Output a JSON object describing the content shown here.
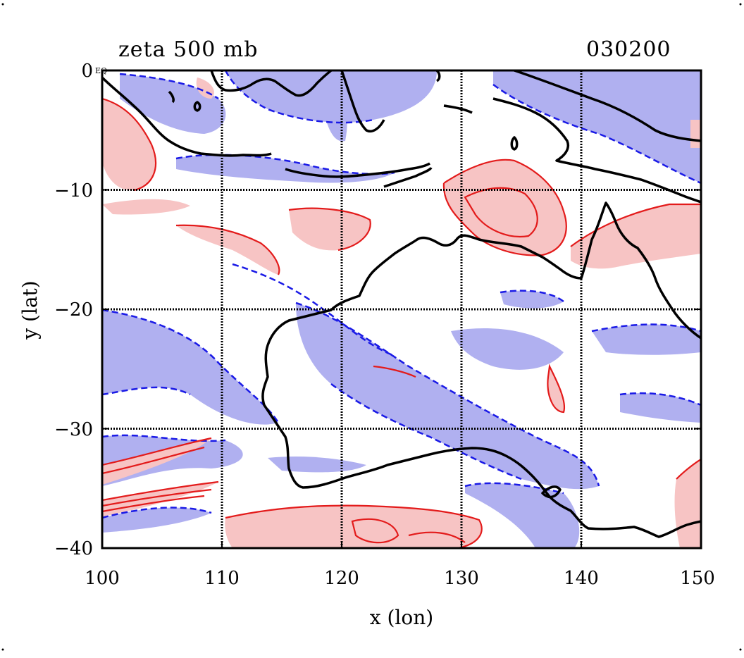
{
  "plot": {
    "title_left": "zeta 500 mb",
    "title_right": "030200",
    "small_label": "EQ",
    "x_label": "x (lon)",
    "y_label": "y (lat)",
    "x_ticks": [
      "100",
      "110",
      "120",
      "130",
      "140",
      "150"
    ],
    "y_ticks": [
      "0",
      "−10",
      "−20",
      "−30",
      "−40"
    ],
    "x_range": [
      100,
      150
    ],
    "y_range": [
      -40,
      0
    ],
    "grid_lons": [
      110,
      120,
      130,
      140
    ],
    "grid_lats": [
      -10,
      -20,
      -30
    ],
    "colors": {
      "positive_fill": "#f7c4c4",
      "positive_line": "#e31b1b",
      "negative_fill": "#b0b0f0",
      "negative_line": "#1a1ae6",
      "coast": "#000000",
      "grid": "#000000"
    }
  }
}
